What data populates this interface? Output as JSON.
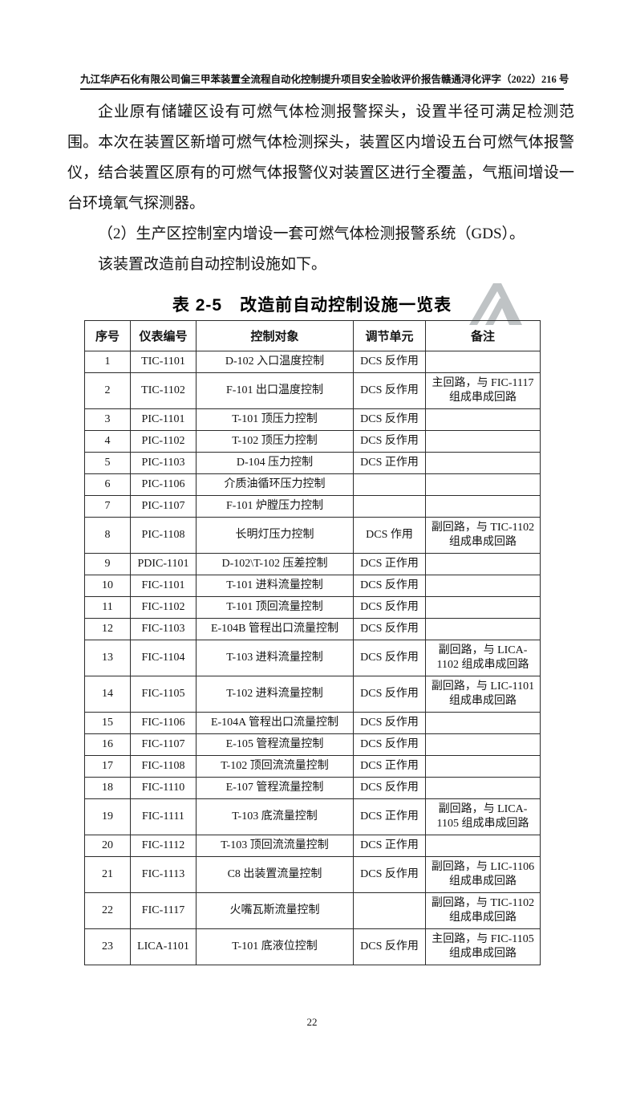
{
  "header": {
    "report_title": "九江华庐石化有限公司偏三甲苯装置全流程自动化控制提升项目安全验收评价报告",
    "doc_number": "赣通浔化评字（2022）216 号"
  },
  "paragraphs": {
    "p1": "企业原有储罐区设有可燃气体检测报警探头，设置半径可满足检测范围。本次在装置区新增可燃气体检测探头，装置区内增设五台可燃气体报警仪，结合装置区原有的可燃气体报警仪对装置区进行全覆盖，气瓶间增设一台环境氧气探测器。",
    "p2": "（2）生产区控制室内增设一套可燃气体检测报警系统（GDS）。",
    "p3": "该装置改造前自动控制设施如下。"
  },
  "table": {
    "title_label": "表 2-5",
    "title_text": "改造前自动控制设施一览表",
    "columns": [
      "序号",
      "仪表编号",
      "控制对象",
      "调节单元",
      "备注"
    ],
    "rows": [
      [
        "1",
        "TIC-1101",
        "D-102 入口温度控制",
        "DCS 反作用",
        ""
      ],
      [
        "2",
        "TIC-1102",
        "F-101 出口温度控制",
        "DCS 反作用",
        "主回路，与 FIC-1117 组成串成回路"
      ],
      [
        "3",
        "PIC-1101",
        "T-101 顶压力控制",
        "DCS 反作用",
        ""
      ],
      [
        "4",
        "PIC-1102",
        "T-102 顶压力控制",
        "DCS 反作用",
        ""
      ],
      [
        "5",
        "PIC-1103",
        "D-104 压力控制",
        "DCS 正作用",
        ""
      ],
      [
        "6",
        "PIC-1106",
        "介质油循环压力控制",
        "",
        ""
      ],
      [
        "7",
        "PIC-1107",
        "F-101 炉膛压力控制",
        "",
        ""
      ],
      [
        "8",
        "PIC-1108",
        "长明灯压力控制",
        "DCS 作用",
        "副回路，与 TIC-1102 组成串成回路"
      ],
      [
        "9",
        "PDIC-1101",
        "D-102\\T-102 压差控制",
        "DCS 正作用",
        ""
      ],
      [
        "10",
        "FIC-1101",
        "T-101 进料流量控制",
        "DCS 反作用",
        ""
      ],
      [
        "11",
        "FIC-1102",
        "T-101 顶回流量控制",
        "DCS 反作用",
        ""
      ],
      [
        "12",
        "FIC-1103",
        "E-104B 管程出口流量控制",
        "DCS 反作用",
        ""
      ],
      [
        "13",
        "FIC-1104",
        "T-103 进料流量控制",
        "DCS 反作用",
        "副回路，与 LICA-1102 组成串成回路"
      ],
      [
        "14",
        "FIC-1105",
        "T-102 进料流量控制",
        "DCS 反作用",
        "副回路，与 LIC-1101 组成串成回路"
      ],
      [
        "15",
        "FIC-1106",
        "E-104A 管程出口流量控制",
        "DCS 反作用",
        ""
      ],
      [
        "16",
        "FIC-1107",
        "E-105 管程流量控制",
        "DCS 反作用",
        ""
      ],
      [
        "17",
        "FIC-1108",
        "T-102 顶回流流量控制",
        "DCS 正作用",
        ""
      ],
      [
        "18",
        "FIC-1110",
        "E-107 管程流量控制",
        "DCS 反作用",
        ""
      ],
      [
        "19",
        "FIC-1111",
        "T-103 底流量控制",
        "DCS 正作用",
        "副回路，与 LICA-1105 组成串成回路"
      ],
      [
        "20",
        "FIC-1112",
        "T-103 顶回流流量控制",
        "DCS 正作用",
        ""
      ],
      [
        "21",
        "FIC-1113",
        "C8 出装置流量控制",
        "DCS 反作用",
        "副回路，与 LIC-1106 组成串成回路"
      ],
      [
        "22",
        "FIC-1117",
        "火嘴瓦斯流量控制",
        "",
        "副回路，与 TIC-1102 组成串成回路"
      ],
      [
        "23",
        "LICA-1101",
        "T-101 底液位控制",
        "DCS 反作用",
        "主回路，与 FIC-1105 组成串成回路"
      ]
    ]
  },
  "footer": {
    "page_number": "22"
  },
  "logo": {
    "color": "#bfc3c5"
  }
}
